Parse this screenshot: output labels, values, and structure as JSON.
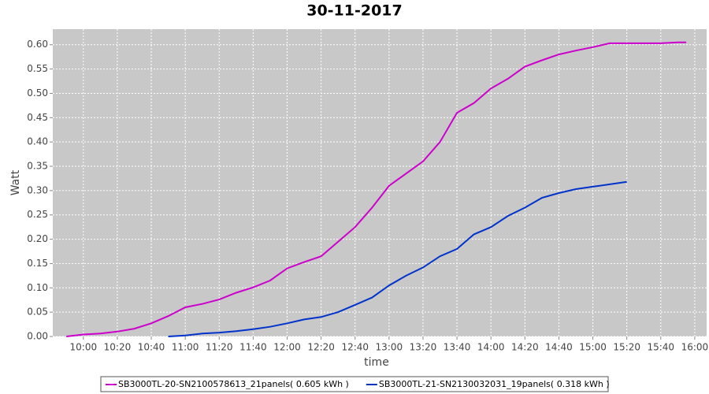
{
  "chart_data": {
    "type": "line",
    "title": "30-11-2017",
    "x_label": "time",
    "y_label": "Watt",
    "xlim": [
      "09:42",
      "16:07"
    ],
    "xticks": [
      "10:00",
      "10:20",
      "10:40",
      "11:00",
      "11:20",
      "11:40",
      "12:00",
      "12:20",
      "12:40",
      "13:00",
      "13:20",
      "13:40",
      "14:00",
      "14:20",
      "14:40",
      "15:00",
      "15:20",
      "15:40",
      "16:00"
    ],
    "ylim": [
      0,
      0.632
    ],
    "yticks": [
      {
        "value": 0,
        "label": "0.00"
      },
      {
        "value": 0.05,
        "label": "0.05"
      },
      {
        "value": 0.1,
        "label": "0.10"
      },
      {
        "value": 0.15,
        "label": "0.15"
      },
      {
        "value": 0.2,
        "label": "0.20"
      },
      {
        "value": 0.25,
        "label": "0.25"
      },
      {
        "value": 0.3,
        "label": "0.30"
      },
      {
        "value": 0.35,
        "label": "0.35"
      },
      {
        "value": 0.4,
        "label": "0.40"
      },
      {
        "value": 0.45,
        "label": "0.45"
      },
      {
        "value": 0.5,
        "label": "0.50"
      },
      {
        "value": 0.55,
        "label": "0.55"
      },
      {
        "value": 0.6,
        "label": "0.60"
      }
    ],
    "grid": true,
    "legend": "bottom",
    "series": [
      {
        "name": "SB3000TL-20-SN2100578613_21panels( 0.605 kWh )",
        "color": "#cc00cc",
        "x": [
          "09:50",
          "10:00",
          "10:10",
          "10:20",
          "10:30",
          "10:40",
          "10:50",
          "11:00",
          "11:10",
          "11:20",
          "11:30",
          "11:40",
          "11:50",
          "12:00",
          "12:10",
          "12:20",
          "12:30",
          "12:40",
          "12:50",
          "13:00",
          "13:10",
          "13:20",
          "13:30",
          "13:40",
          "13:50",
          "14:00",
          "14:10",
          "14:20",
          "14:30",
          "14:40",
          "14:50",
          "15:00",
          "15:10",
          "15:20",
          "15:30",
          "15:40",
          "15:50",
          "15:55"
        ],
        "values": [
          0.0,
          0.004,
          0.006,
          0.01,
          0.016,
          0.027,
          0.042,
          0.06,
          0.067,
          0.076,
          0.09,
          0.101,
          0.115,
          0.14,
          0.153,
          0.165,
          0.195,
          0.225,
          0.265,
          0.31,
          0.335,
          0.36,
          0.4,
          0.46,
          0.48,
          0.51,
          0.53,
          0.555,
          0.568,
          0.58,
          0.588,
          0.595,
          0.603,
          0.603,
          0.603,
          0.603,
          0.605,
          0.605
        ]
      },
      {
        "name": "SB3000TL-21-SN2130032031_19panels( 0.318 kWh )",
        "color": "#0033cc",
        "x": [
          "10:50",
          "11:00",
          "11:10",
          "11:20",
          "11:30",
          "11:40",
          "11:50",
          "12:00",
          "12:10",
          "12:20",
          "12:30",
          "12:40",
          "12:50",
          "13:00",
          "13:10",
          "13:20",
          "13:30",
          "13:40",
          "13:50",
          "14:00",
          "14:10",
          "14:20",
          "14:30",
          "14:40",
          "14:50",
          "15:00",
          "15:10",
          "15:20"
        ],
        "values": [
          0.0,
          0.002,
          0.006,
          0.008,
          0.011,
          0.015,
          0.02,
          0.027,
          0.035,
          0.04,
          0.05,
          0.065,
          0.08,
          0.105,
          0.125,
          0.142,
          0.165,
          0.18,
          0.21,
          0.225,
          0.248,
          0.265,
          0.285,
          0.295,
          0.303,
          0.308,
          0.313,
          0.318
        ]
      }
    ]
  }
}
